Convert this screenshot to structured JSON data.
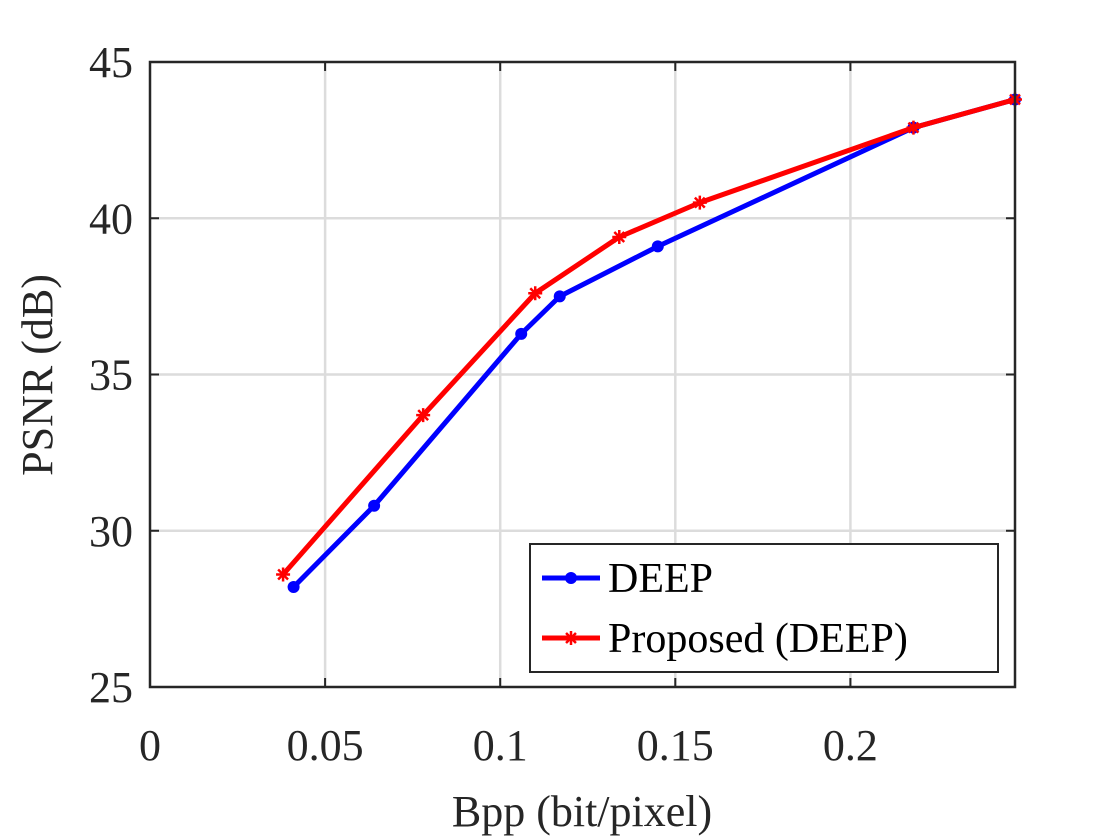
{
  "chart_data": {
    "type": "line",
    "xlabel": "Bpp (bit/pixel)",
    "ylabel": "PSNR (dB)",
    "xlim": [
      0,
      0.247
    ],
    "ylim": [
      25,
      45
    ],
    "xticks": [
      0,
      0.05,
      0.1,
      0.15,
      0.2
    ],
    "xtick_labels": [
      "0",
      "0.05",
      "0.1",
      "0.15",
      "0.2"
    ],
    "yticks": [
      25,
      30,
      35,
      40,
      45
    ],
    "ytick_labels": [
      "25",
      "30",
      "35",
      "40",
      "45"
    ],
    "grid": true,
    "legend_position": "bottom-right",
    "series": [
      {
        "name": "DEEP",
        "color": "#0000ff",
        "marker": "dot",
        "x": [
          0.041,
          0.064,
          0.106,
          0.117,
          0.145,
          0.218,
          0.247
        ],
        "y": [
          28.2,
          30.8,
          36.3,
          37.5,
          39.1,
          42.9,
          43.8
        ]
      },
      {
        "name": "Proposed (DEEP)",
        "color": "#ff0000",
        "marker": "star",
        "x": [
          0.038,
          0.078,
          0.11,
          0.134,
          0.157,
          0.218,
          0.247
        ],
        "y": [
          28.6,
          33.7,
          37.6,
          39.4,
          40.5,
          42.9,
          43.8
        ]
      }
    ]
  }
}
